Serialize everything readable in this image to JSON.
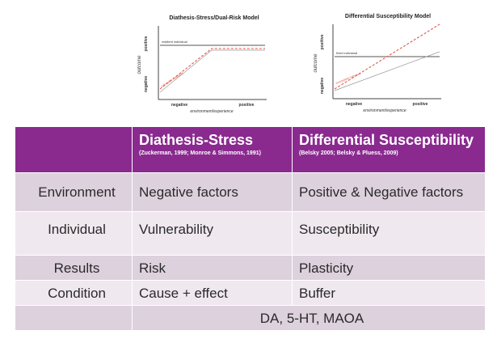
{
  "models": [
    {
      "title": "Diathesis-Stress/Dual-Risk Model",
      "y_top_label": "positive",
      "y_bottom_label": "negative",
      "y_axis_label": "outcome",
      "x_left_label": "negative",
      "x_right_label": "positive",
      "x_axis_label": "environment/experience",
      "fixed_line_label": "resilient individual",
      "diagonal_label": "vulnerable individual"
    },
    {
      "title": "Differential Susceptibility Model",
      "y_top_label": "positive",
      "y_bottom_label": "negative",
      "y_axis_label": "outcome",
      "x_left_label": "negative",
      "x_right_label": "positive",
      "x_axis_label": "environment/experience",
      "fixed_line_label": "fixed individual",
      "diagonal_label": "susceptible individual"
    }
  ],
  "table": {
    "header": {
      "col1_title": "Diathesis-Stress",
      "col1_cite": "(Zuckerman, 1999; Monroe & Simmons, 1991)",
      "col2_title": "Differential Susceptibility",
      "col2_cite": "(Belsky 2005; Belsky & Pluess, 2009)"
    },
    "rows": [
      {
        "label": "Environment",
        "col1": "Negative factors",
        "col2": "Positive & Negative factors"
      },
      {
        "label": "Individual",
        "col1": "Vulnerability",
        "col2": "Susceptibility"
      },
      {
        "label": "Results",
        "col1": "Risk",
        "col2": "Plasticity"
      },
      {
        "label": "Condition",
        "col1": "Cause + effect",
        "col2": "Buffer"
      }
    ],
    "footer": "DA, 5-HT, MAOA"
  },
  "colors": {
    "header_bg": "#8a2a8f",
    "row_dark": "#ddd1dd",
    "row_light": "#efe9ef",
    "dashed_line": "#e0584a"
  }
}
